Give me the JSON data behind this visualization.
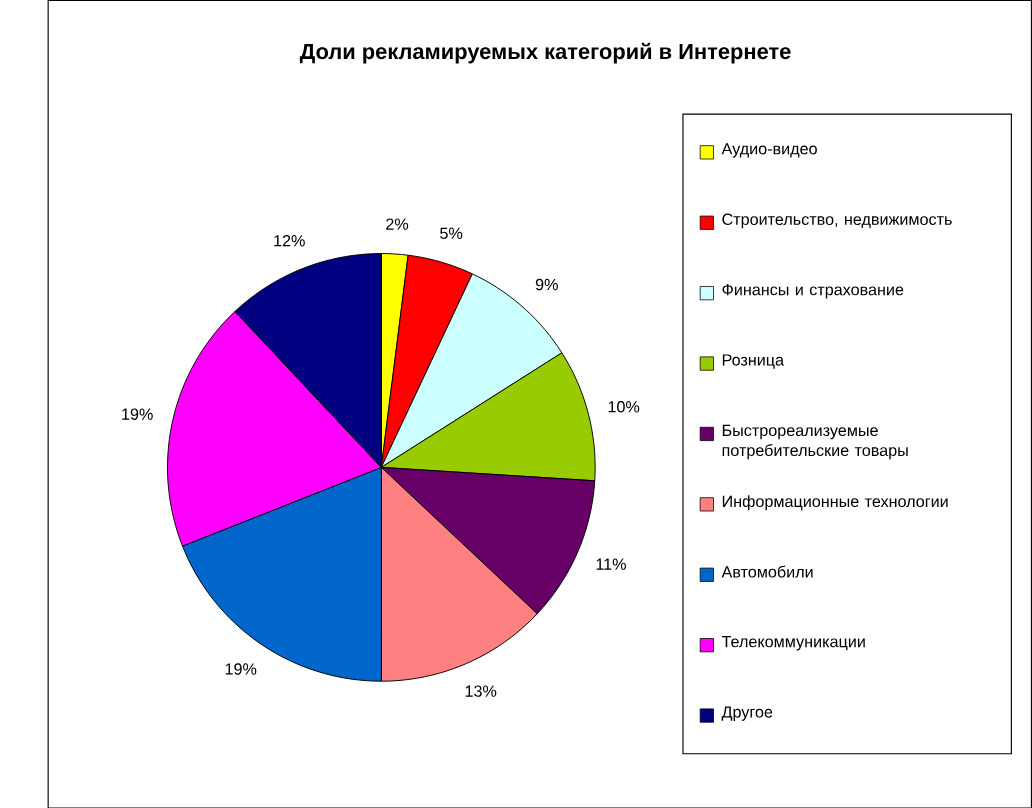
{
  "chart_data": {
    "type": "pie",
    "title": "Доли рекламируемых категорий в Интернете",
    "categories": [
      "Аудио-видео",
      "Строительство, недвижимость",
      "Финансы и страхование",
      "Розница",
      "Быстрореализуемые потребительские товары",
      "Информационные технологии",
      "Автомобили",
      "Телекоммуникации",
      "Другое"
    ],
    "values": [
      2,
      5,
      9,
      10,
      11,
      13,
      19,
      19,
      12
    ],
    "value_labels": [
      "2%",
      "5%",
      "9%",
      "10%",
      "11%",
      "13%",
      "19%",
      "19%",
      "12%"
    ],
    "colors": [
      "#ffff00",
      "#ff0000",
      "#ccffff",
      "#99cc00",
      "#660066",
      "#ff8080",
      "#0066cc",
      "#ff00ff",
      "#000080"
    ],
    "legend": "right"
  }
}
